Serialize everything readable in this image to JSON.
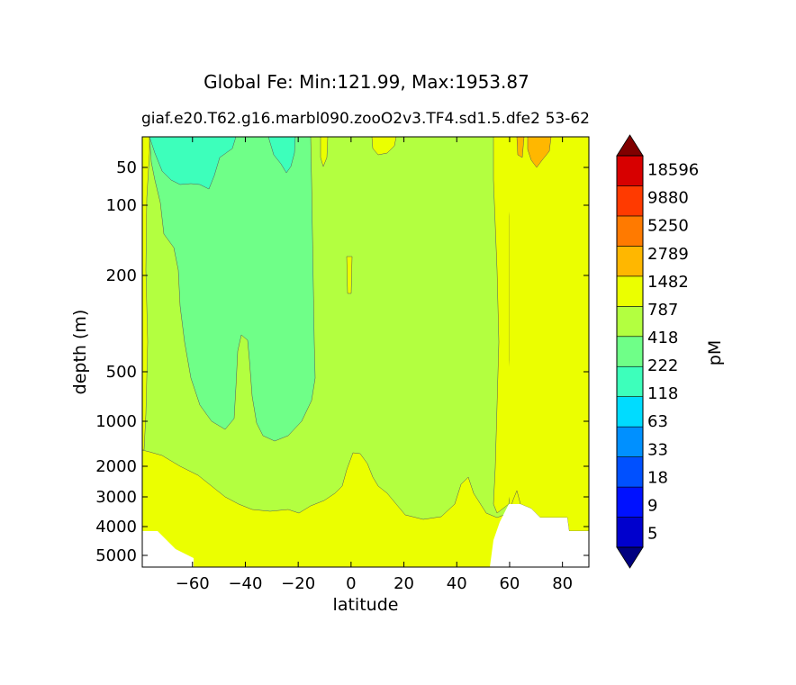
{
  "chart_data": {
    "type": "heatmap",
    "title": "Global Fe: Min:121.99, Max:1953.87",
    "subtitle_left": "giaf.e20.T62.g16.marbl090.zooO2v3.TF4.sd1.5.dfe2",
    "subtitle_right": "53-62",
    "xlabel": "latitude",
    "ylabel": "depth (m)",
    "colorbar_label": "pM",
    "x_ticks": [
      -60,
      -40,
      -20,
      0,
      20,
      40,
      60,
      80
    ],
    "x_tick_labels": [
      "−60",
      "−40",
      "−20",
      "0",
      "20",
      "40",
      "60",
      "80"
    ],
    "xlim": [
      -79,
      90
    ],
    "y_ticks": [
      50,
      100,
      200,
      500,
      1000,
      2000,
      3000,
      4000,
      5000
    ],
    "y_tick_labels": [
      "50",
      "100",
      "200",
      "500",
      "1000",
      "2000",
      "3000",
      "4000",
      "5000"
    ],
    "ylim": [
      5500,
      10
    ],
    "y_scale": "custom depth (compressed)",
    "contour_levels": [
      "5",
      "9",
      "18",
      "33",
      "63",
      "118",
      "222",
      "418",
      "787",
      "1482",
      "2789",
      "5250",
      "9880",
      "18596"
    ],
    "colorbar_colors": [
      "#000080",
      "#0000cd",
      "#0011ff",
      "#0050ff",
      "#0090ff",
      "#00dcff",
      "#3dffbb",
      "#6fff88",
      "#b3ff40",
      "#ebff00",
      "#ffb700",
      "#ff7a00",
      "#ff3a00",
      "#d70000",
      "#800000"
    ],
    "colorbar_extend": "both",
    "regions": [
      {
        "level_range": "787-1482",
        "color": "#ebff00",
        "description": "deep water below ~2000 m, high latitudes north of 60N"
      },
      {
        "level_range": "418-787",
        "color": "#b3ff40",
        "description": "intermediate and upper ocean"
      },
      {
        "level_range": "222-418",
        "color": "#6fff88",
        "description": "Southern Hemisphere intermediate water tongue 70S-15S, down to ~1400 m"
      },
      {
        "level_range": "118-222",
        "color": "#3dffbb",
        "description": "surface near 70S-45S and 30S-20S"
      },
      {
        "level_range": "1482-2789",
        "color": "#ffb700",
        "description": "small surface patch near 70N"
      }
    ]
  }
}
